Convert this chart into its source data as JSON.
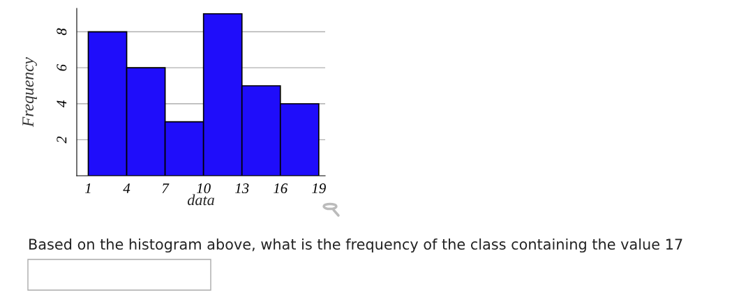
{
  "chart_data": {
    "type": "histogram",
    "xlabel": "data",
    "ylabel": "Frequency",
    "bins": [
      1,
      4,
      7,
      10,
      13,
      16,
      19
    ],
    "values": [
      8,
      6,
      3,
      9,
      5,
      4
    ],
    "color": "#1f0dfa",
    "xlim": [
      0.1,
      19.5
    ],
    "xticks": [
      1,
      4,
      7,
      10,
      13,
      16,
      19
    ],
    "ylim": [
      0,
      9.3
    ],
    "yticks": [
      2,
      4,
      6,
      8
    ],
    "grid": "y",
    "annotations": [
      "Based on the histogram above, what is the frequency of the class containing the value 17"
    ]
  }
}
